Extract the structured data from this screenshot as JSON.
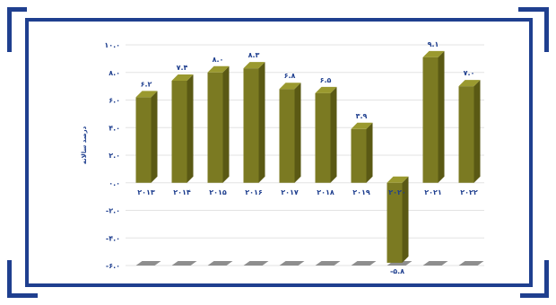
{
  "chart_data": {
    "type": "bar",
    "categories": [
      "۲۰۱۳",
      "۲۰۱۴",
      "۲۰۱۵",
      "۲۰۱۶",
      "۲۰۱۷",
      "۲۰۱۸",
      "۲۰۱۹",
      "۲۰۲۰",
      "۲۰۲۱",
      "۲۰۲۲"
    ],
    "values": [
      6.2,
      7.4,
      8.0,
      8.3,
      6.8,
      6.5,
      3.9,
      -5.8,
      9.1,
      7.0
    ],
    "value_labels": [
      "۶.۲",
      "۷.۴",
      "۸.۰",
      "۸.۳",
      "۶.۸",
      "۶.۵",
      "۳.۹",
      "-۵.۸",
      "۹.۱",
      "۷.۰"
    ],
    "ylabel": "درصد سالانه",
    "ylim": [
      -6,
      10
    ],
    "yticks": [
      -6,
      -4,
      -2,
      0,
      2,
      4,
      6,
      8,
      10
    ],
    "ytick_labels": [
      "-۶.۰",
      "-۴.۰",
      "-۲.۰",
      "۰.۰",
      "۲.۰",
      "۴.۰",
      "۶.۰",
      "۸.۰",
      "۱۰.۰"
    ],
    "bar_color": "#7b7a22",
    "bar_side_color": "#5a5914",
    "bar_top_color": "#9a992f",
    "grid": true
  },
  "frame": {
    "color": "#1f3f8f"
  }
}
